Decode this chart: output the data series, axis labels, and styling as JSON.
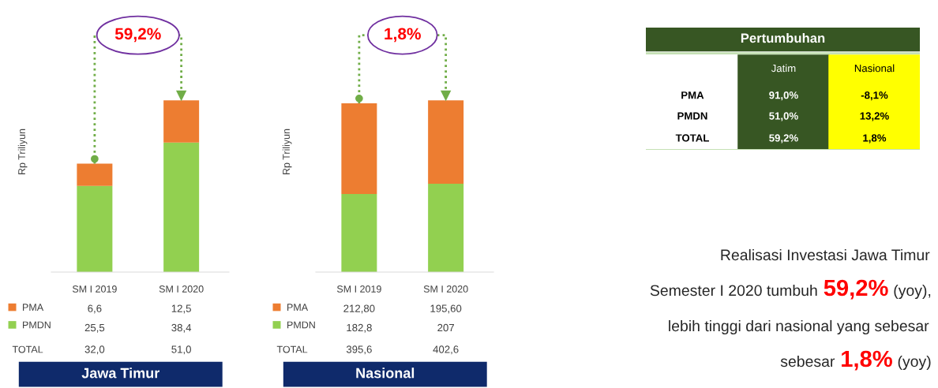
{
  "chart_data": [
    {
      "type": "bar",
      "title": "Jawa Timur",
      "ylabel": "Rp Triliyun",
      "categories": [
        "SM I 2019",
        "SM I 2020"
      ],
      "stacked": true,
      "legend": "bottom",
      "series": [
        {
          "name": "PMDN",
          "color": "#92d050",
          "values": [
            25.5,
            38.4
          ],
          "value_labels": [
            "25,5",
            "38,4"
          ]
        },
        {
          "name": "PMA",
          "color": "#ed7d31",
          "values": [
            6.6,
            12.5
          ],
          "value_labels": [
            "6,6",
            "12,5"
          ]
        }
      ],
      "annotations": [
        "59,2%",
        "TOTAL",
        "32,0",
        "51,0"
      ]
    },
    {
      "type": "bar",
      "title": "Nasional",
      "ylabel": "Rp Triliyun",
      "categories": [
        "SM I 2019",
        "SM I 2020"
      ],
      "stacked": true,
      "legend": "bottom",
      "series": [
        {
          "name": "PMDN",
          "color": "#92d050",
          "values": [
            182.8,
            207
          ],
          "value_labels": [
            "182,8",
            "207"
          ]
        },
        {
          "name": "PMA",
          "color": "#ed7d31",
          "values": [
            212.8,
            195.6
          ],
          "value_labels": [
            "212,80",
            "195,60"
          ]
        }
      ],
      "annotations": [
        "1,8%",
        "TOTAL",
        "395,6",
        "402,6"
      ]
    },
    {
      "type": "other",
      "title": "Pertumbuhan",
      "categories": [
        "Jatim",
        "Nasional"
      ],
      "y_categories": [
        "PMA",
        "PMDN",
        "TOTAL"
      ],
      "colors": [
        "#375623",
        "#ffff00"
      ],
      "cell_labels": [
        [
          "91,0%",
          "-8,1%"
        ],
        [
          "51,0%",
          "13,2%"
        ],
        [
          "59,2%",
          "1,8%"
        ]
      ],
      "annotations": [
        "Realisasi Investasi Jawa Timur\nSemester I 2020 tumbuh",
        "59,2%",
        "(yoy),\nlebih tinggi dari nasional yang sebesar\nsebesar",
        "1,8%",
        "(yoy)"
      ]
    }
  ]
}
